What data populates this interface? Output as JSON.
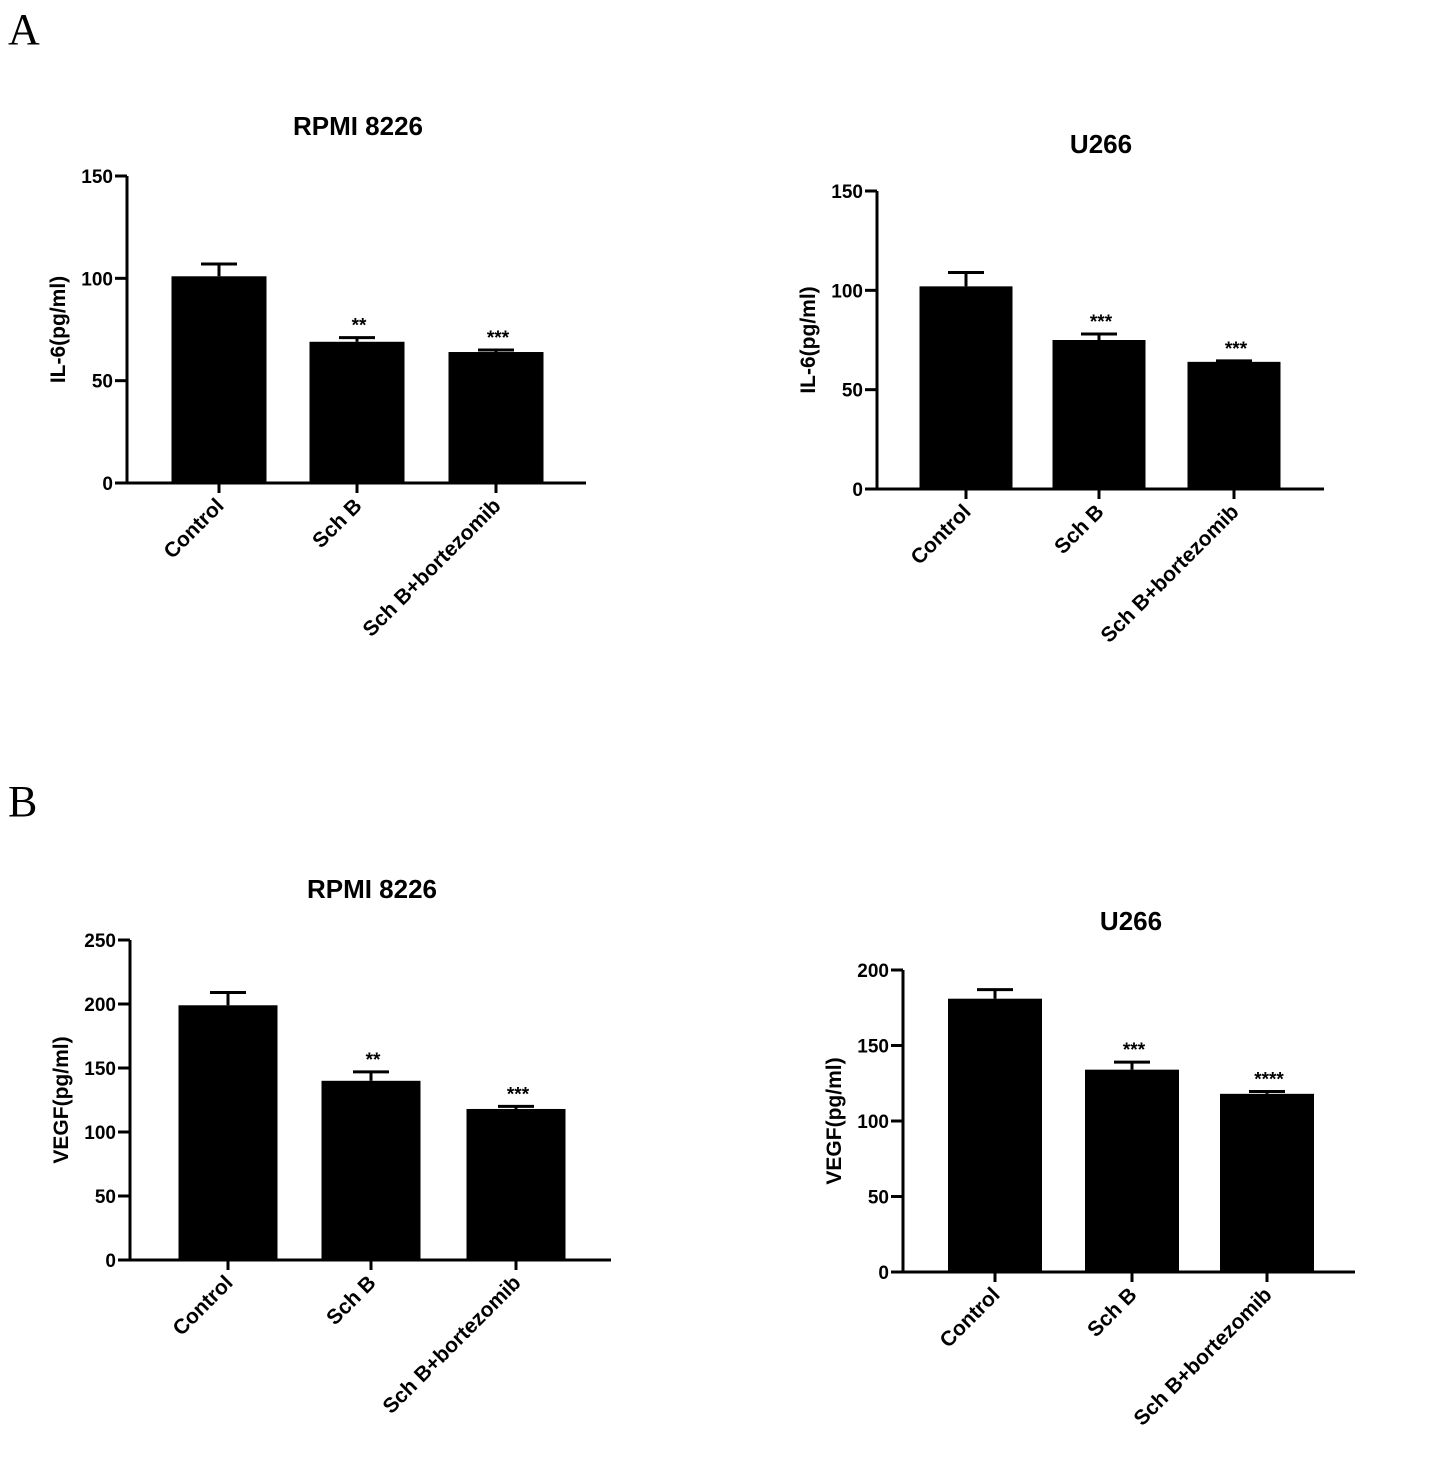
{
  "panels": [
    {
      "label": "A"
    },
    {
      "label": "B"
    }
  ],
  "chart_data": [
    {
      "type": "bar",
      "title": "RPMI 8226",
      "ylabel": "IL-6(pg/ml)",
      "xlabel": "",
      "categories": [
        "Control",
        "Sch B",
        "Sch B+bortezomib"
      ],
      "values": [
        101,
        69,
        64
      ],
      "errors": [
        6,
        2,
        1
      ],
      "significance": [
        "",
        "**",
        "***"
      ],
      "ylim": [
        0,
        150
      ],
      "yticks": [
        0,
        50,
        100,
        150
      ],
      "bar_color": "#000000",
      "grid": false,
      "legend": "none"
    },
    {
      "type": "bar",
      "title": "U266",
      "ylabel": "IL-6(pg/ml)",
      "xlabel": "",
      "categories": [
        "Control",
        "Sch B",
        "Sch B+bortezomib"
      ],
      "values": [
        102,
        75,
        64
      ],
      "errors": [
        7,
        3,
        0.5
      ],
      "significance": [
        "",
        "***",
        "***"
      ],
      "ylim": [
        0,
        150
      ],
      "yticks": [
        0,
        50,
        100,
        150
      ],
      "bar_color": "#000000",
      "grid": false,
      "legend": "none"
    },
    {
      "type": "bar",
      "title": "RPMI 8226",
      "ylabel": "VEGF(pg/ml)",
      "xlabel": "",
      "categories": [
        "Control",
        "Sch B",
        "Sch B+bortezomib"
      ],
      "values": [
        199,
        140,
        118
      ],
      "errors": [
        10,
        7,
        2
      ],
      "significance": [
        "",
        "**",
        "***"
      ],
      "ylim": [
        0,
        250
      ],
      "yticks": [
        0,
        50,
        100,
        150,
        200,
        250
      ],
      "bar_color": "#000000",
      "grid": false,
      "legend": "none"
    },
    {
      "type": "bar",
      "title": "U266",
      "ylabel": "VEGF(pg/ml)",
      "xlabel": "",
      "categories": [
        "Control",
        "Sch B",
        "Sch B+bortezomib"
      ],
      "values": [
        181,
        134,
        118
      ],
      "errors": [
        6,
        5,
        1.5
      ],
      "significance": [
        "",
        "***",
        "****"
      ],
      "ylim": [
        0,
        200
      ],
      "yticks": [
        0,
        50,
        100,
        150,
        200
      ],
      "bar_color": "#000000",
      "grid": false,
      "legend": "none"
    }
  ]
}
